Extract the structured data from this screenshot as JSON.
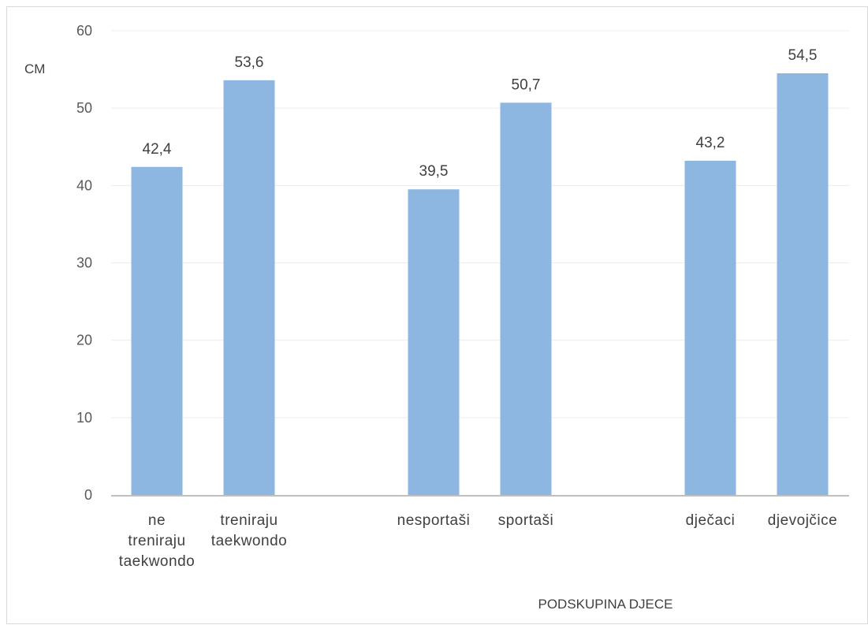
{
  "chart_data": {
    "type": "bar",
    "categories": [
      "ne treniraju taekwondo",
      "treniraju taekwondo",
      "nesportaši",
      "sportaši",
      "dječaci",
      "djevojčice"
    ],
    "category_lines": [
      [
        "ne",
        "treniraju",
        "taekwondo"
      ],
      [
        "treniraju",
        "taekwondo"
      ],
      [
        "nesportaši"
      ],
      [
        "sportaši"
      ],
      [
        "dječaci"
      ],
      [
        "djevojčice"
      ]
    ],
    "values": [
      42.4,
      53.6,
      39.5,
      50.7,
      43.2,
      54.5
    ],
    "data_labels": [
      "42,4",
      "53,6",
      "39,5",
      "50,7",
      "43,2",
      "54,5"
    ],
    "groups": [
      [
        "ne treniraju taekwondo",
        "treniraju taekwondo"
      ],
      [
        "nesportaši",
        "sportaši"
      ],
      [
        "dječaci",
        "djevojčice"
      ]
    ],
    "title": "",
    "xlabel": "PODSKUPINA DJECE",
    "ylabel": "CM",
    "ylim": [
      0,
      60
    ],
    "yticks": [
      0,
      10,
      20,
      30,
      40,
      50,
      60
    ],
    "grid": true,
    "bar_color": "#8db7e0",
    "gridline_color": "#ececec",
    "axis_color": "#bfbfbf"
  }
}
